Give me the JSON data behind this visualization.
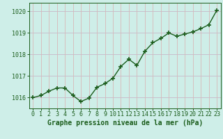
{
  "x": [
    0,
    1,
    2,
    3,
    4,
    5,
    6,
    7,
    8,
    9,
    10,
    11,
    12,
    13,
    14,
    15,
    16,
    17,
    18,
    19,
    20,
    21,
    22,
    23
  ],
  "y": [
    1016.0,
    1016.1,
    1016.3,
    1016.45,
    1016.45,
    1016.1,
    1015.82,
    1015.98,
    1016.48,
    1016.65,
    1016.9,
    1017.45,
    1017.78,
    1017.5,
    1018.15,
    1018.55,
    1018.75,
    1019.0,
    1018.85,
    1018.95,
    1019.05,
    1019.2,
    1019.38,
    1020.05
  ],
  "line_color": "#1a5c1a",
  "marker": "+",
  "marker_size": 5,
  "marker_linewidth": 1.2,
  "line_width": 1.0,
  "bg_color": "#ceeee8",
  "hgrid_color": "#c8b8c8",
  "vgrid_color": "#d8b8b8",
  "xlabel": "Graphe pression niveau de la mer (hPa)",
  "xlabel_color": "#1a5c1a",
  "xlabel_fontsize": 7.0,
  "tick_color": "#1a5c1a",
  "tick_fontsize": 6.0,
  "ylim": [
    1015.5,
    1020.4
  ],
  "yticks": [
    1016,
    1017,
    1018,
    1019,
    1020
  ],
  "xlim": [
    -0.5,
    23.5
  ],
  "figwidth": 3.2,
  "figheight": 2.0,
  "dpi": 100
}
